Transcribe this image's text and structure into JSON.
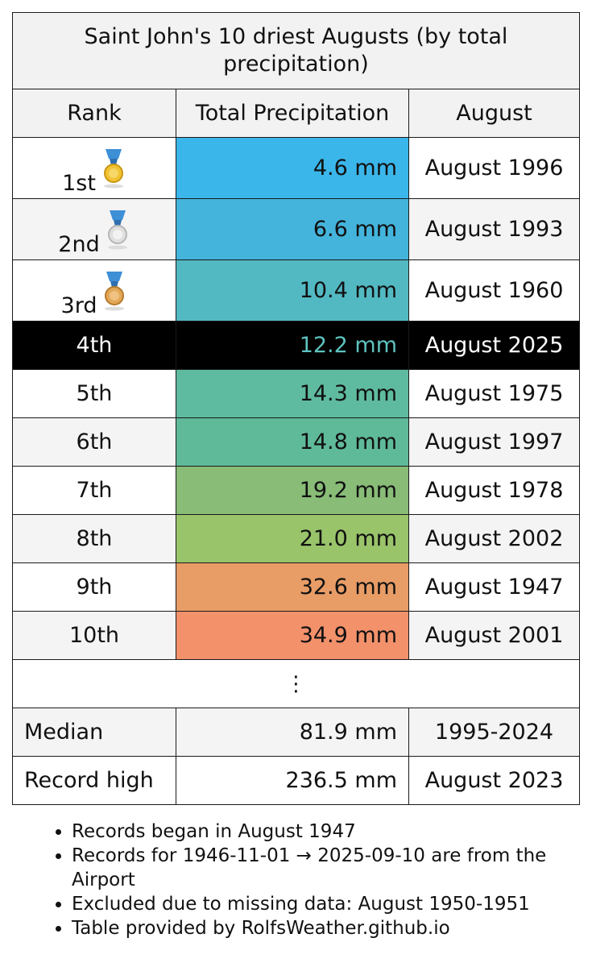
{
  "table": {
    "title": "Saint John's 10 driest Augusts (by total precipitation)",
    "headers": {
      "rank": "Rank",
      "precip": "Total Precipitation",
      "month": "August"
    },
    "rows": [
      {
        "rank": "1st",
        "medal": "gold-medal-icon",
        "precip": "4.6 mm",
        "month": "August 1996",
        "color": "#3ab6ea"
      },
      {
        "rank": "2nd",
        "medal": "silver-medal-icon",
        "precip": "6.6 mm",
        "month": "August 1993",
        "color": "#44b4dc"
      },
      {
        "rank": "3rd",
        "medal": "bronze-medal-icon",
        "precip": "10.4 mm",
        "month": "August 1960",
        "color": "#52b9c3"
      },
      {
        "rank": "4th",
        "precip": "12.2 mm",
        "month": "August 2025",
        "color": "#5ec3c0",
        "highlighted": true
      },
      {
        "rank": "5th",
        "precip": "14.3 mm",
        "month": "August 1975",
        "color": "#5fbb9f"
      },
      {
        "rank": "6th",
        "precip": "14.8 mm",
        "month": "August 1997",
        "color": "#5fba9a"
      },
      {
        "rank": "7th",
        "precip": "19.2 mm",
        "month": "August 1978",
        "color": "#88bc77"
      },
      {
        "rank": "8th",
        "precip": "21.0 mm",
        "month": "August 2002",
        "color": "#99c46a"
      },
      {
        "rank": "9th",
        "precip": "32.6 mm",
        "month": "August 1947",
        "color": "#e89c66"
      },
      {
        "rank": "10th",
        "precip": "34.9 mm",
        "month": "August 2001",
        "color": "#f3916b"
      }
    ],
    "ellipsis": "⋮",
    "summary": [
      {
        "label": "Median",
        "precip": "81.9 mm",
        "month": "1995-2024"
      },
      {
        "label": "Record high",
        "precip": "236.5 mm",
        "month": "August 2023"
      }
    ]
  },
  "notes": [
    "Records began in August 1947",
    "Records for 1946-11-01 → 2025-09-10 are from the Airport",
    "Excluded due to missing data: August 1950-1951",
    "Table provided by RolfsWeather.github.io"
  ]
}
